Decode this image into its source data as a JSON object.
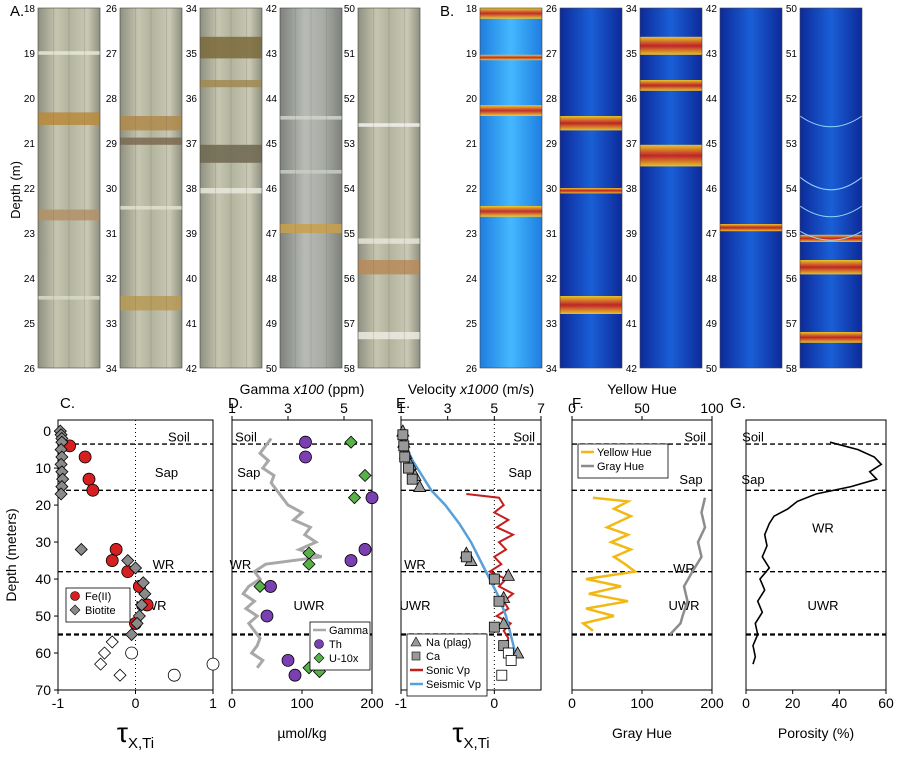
{
  "figure": {
    "panel_labels": {
      "A": "A.",
      "B": "B.",
      "C": "C.",
      "D": "D.",
      "E": "E.",
      "F": "F.",
      "G": "G."
    }
  },
  "core_panels": {
    "depth_axis_label": "Depth (m)",
    "columns": [
      {
        "id": "A1",
        "depth_ticks": [
          "18",
          "19",
          "20",
          "21",
          "22",
          "23",
          "24",
          "25",
          "26"
        ]
      },
      {
        "id": "A2",
        "depth_ticks": [
          "26",
          "27",
          "28",
          "29",
          "30",
          "31",
          "32",
          "33",
          "34"
        ]
      },
      {
        "id": "A3",
        "depth_ticks": [
          "34",
          "35",
          "36",
          "37",
          "38",
          "39",
          "40",
          "41",
          "42"
        ]
      },
      {
        "id": "A4",
        "depth_ticks": [
          "42",
          "43",
          "44",
          "45",
          "46",
          "47",
          "48",
          "49",
          "50"
        ]
      },
      {
        "id": "A5",
        "depth_ticks": [
          "50",
          "51",
          "52",
          "53",
          "54",
          "55",
          "56",
          "57",
          "58"
        ]
      },
      {
        "id": "B1",
        "depth_ticks": [
          "18",
          "19",
          "20",
          "21",
          "22",
          "23",
          "24",
          "25",
          "26"
        ]
      },
      {
        "id": "B2",
        "depth_ticks": [
          "26",
          "27",
          "28",
          "29",
          "30",
          "31",
          "32",
          "33",
          "34"
        ]
      },
      {
        "id": "B3",
        "depth_ticks": [
          "34",
          "35",
          "36",
          "37",
          "38",
          "39",
          "40",
          "41",
          "42"
        ]
      },
      {
        "id": "B4",
        "depth_ticks": [
          "42",
          "43",
          "44",
          "45",
          "46",
          "47",
          "48",
          "49",
          "50"
        ]
      },
      {
        "id": "B5",
        "depth_ticks": [
          "50",
          "51",
          "52",
          "53",
          "54",
          "55",
          "56",
          "57",
          "58"
        ]
      }
    ]
  },
  "colors": {
    "fe": "#d42020",
    "biotite": "#8a8a8a",
    "gamma": "#a8a8a8",
    "th": "#7a3fb0",
    "u": "#58b048",
    "sonic": "#c41e1e",
    "seismic": "#5aa0d8",
    "yellow": "#f2b915",
    "gray": "#8c8c8c",
    "porosity": "#000000"
  },
  "chart_data": [
    {
      "id": "C",
      "type": "scatter",
      "ylabel": "Depth (meters)",
      "xlabel_main": "τ",
      "xlabel_sub": "X,Ti",
      "xlim": [
        -1,
        1
      ],
      "ylim": [
        70,
        -3
      ],
      "xticks": [
        "-1",
        "0",
        "1"
      ],
      "yticks": [
        "0",
        "10",
        "20",
        "30",
        "40",
        "50",
        "60",
        "70"
      ],
      "zones": [
        {
          "name": "Soil",
          "depth": 3.5
        },
        {
          "name": "Sap",
          "depth": 16
        },
        {
          "name": "WR",
          "depth": 38
        },
        {
          "name": "UWR",
          "depth": 55
        }
      ],
      "zone_labels": [
        "Soil",
        "Sap",
        "WR",
        "UWR"
      ],
      "legend": [
        "Fe(II)",
        "Biotite"
      ],
      "series": [
        {
          "name": "Fe(II)",
          "marker": "circle",
          "points": [
            [
              -0.85,
              4
            ],
            [
              -0.65,
              7
            ],
            [
              -0.6,
              13
            ],
            [
              -0.55,
              16
            ],
            [
              -0.25,
              32
            ],
            [
              -0.3,
              35
            ],
            [
              -0.1,
              38
            ],
            [
              0.05,
              42
            ],
            [
              0.15,
              47
            ],
            [
              0.0,
              52
            ]
          ]
        },
        {
          "name": "Biotite",
          "marker": "diamond",
          "points": [
            [
              -0.97,
              0
            ],
            [
              -0.96,
              1
            ],
            [
              -0.95,
              2
            ],
            [
              -0.95,
              3
            ],
            [
              -0.96,
              5
            ],
            [
              -0.95,
              7
            ],
            [
              -0.96,
              9
            ],
            [
              -0.95,
              11
            ],
            [
              -0.94,
              13
            ],
            [
              -0.95,
              15
            ],
            [
              -0.96,
              17
            ],
            [
              -0.7,
              32
            ],
            [
              -0.1,
              35
            ],
            [
              0.0,
              37
            ],
            [
              0.1,
              41
            ],
            [
              0.12,
              44
            ],
            [
              0.08,
              47
            ],
            [
              0.05,
              50
            ],
            [
              0.02,
              52
            ],
            [
              -0.05,
              55
            ]
          ]
        },
        {
          "name": "lower",
          "marker": "open-diamond",
          "points": [
            [
              -0.3,
              57
            ],
            [
              -0.4,
              60
            ],
            [
              -0.45,
              63
            ],
            [
              -0.2,
              66
            ]
          ]
        },
        {
          "name": "lower-c",
          "marker": "open-circle",
          "points": [
            [
              -0.05,
              60
            ],
            [
              0.5,
              66
            ],
            [
              1.0,
              63
            ]
          ]
        }
      ]
    },
    {
      "id": "D",
      "type": "line+scatter",
      "title": "Gamma",
      "title_mult": "x100",
      "title_unit": "(ppm)",
      "xlabel": "µmol/kg",
      "xlim": [
        0,
        200
      ],
      "top_xlim": [
        1,
        6
      ],
      "ylim": [
        70,
        -3
      ],
      "xticks": [
        "0",
        "100",
        "200"
      ],
      "top_xticks": [
        "1",
        "3",
        "5"
      ],
      "zones": [
        {
          "name": "Soil",
          "depth": 3.5
        },
        {
          "name": "Sap",
          "depth": 16
        },
        {
          "name": "WR",
          "depth": 38
        },
        {
          "name": "UWR",
          "depth": 55
        }
      ],
      "zone_labels": [
        "Soil",
        "Sap",
        "WR",
        "UWR"
      ],
      "legend": [
        "Gamma",
        "Th",
        "U-10x"
      ],
      "gamma_profile": [
        [
          2.4,
          2
        ],
        [
          2.2,
          4
        ],
        [
          2.0,
          6
        ],
        [
          2.3,
          8
        ],
        [
          2.1,
          10
        ],
        [
          2.5,
          12
        ],
        [
          2.4,
          14
        ],
        [
          2.6,
          16
        ],
        [
          2.8,
          18
        ],
        [
          3.0,
          20
        ],
        [
          3.5,
          22
        ],
        [
          3.2,
          24
        ],
        [
          3.8,
          26
        ],
        [
          3.6,
          28
        ],
        [
          4.0,
          30
        ],
        [
          3.4,
          32
        ],
        [
          4.2,
          34
        ],
        [
          2.2,
          36
        ],
        [
          1.8,
          38
        ],
        [
          2.0,
          40
        ],
        [
          1.6,
          42
        ],
        [
          1.4,
          44
        ],
        [
          1.8,
          46
        ],
        [
          1.5,
          48
        ],
        [
          1.9,
          50
        ],
        [
          1.6,
          52
        ],
        [
          1.8,
          54
        ],
        [
          2.0,
          56
        ],
        [
          1.9,
          58
        ],
        [
          1.7,
          60
        ],
        [
          2.1,
          62
        ],
        [
          1.9,
          64
        ]
      ],
      "series": [
        {
          "name": "Th",
          "marker": "circle",
          "points": [
            [
              105,
              3
            ],
            [
              105,
              7
            ],
            [
              200,
              18
            ],
            [
              190,
              32
            ],
            [
              170,
              35
            ],
            [
              55,
              42
            ],
            [
              50,
              50
            ],
            [
              80,
              62
            ],
            [
              90,
              66
            ]
          ]
        },
        {
          "name": "U-10x",
          "marker": "diamond",
          "points": [
            [
              170,
              3
            ],
            [
              190,
              12
            ],
            [
              175,
              18
            ],
            [
              110,
              33
            ],
            [
              110,
              36
            ],
            [
              40,
              42
            ],
            [
              110,
              64
            ],
            [
              125,
              65
            ]
          ]
        }
      ]
    },
    {
      "id": "E",
      "type": "line+scatter",
      "title": "Velocity",
      "title_mult": "x1000",
      "title_unit": "(m/s)",
      "xlabel_main": "τ",
      "xlabel_sub": "X,Ti",
      "xlim": [
        -1,
        0.5
      ],
      "top_xlim": [
        1,
        7
      ],
      "ylim": [
        70,
        -3
      ],
      "xticks": [
        "-1",
        "0"
      ],
      "top_xticks": [
        "1",
        "3",
        "5",
        "7"
      ],
      "zones": [
        {
          "name": "Soil",
          "depth": 3.5
        },
        {
          "name": "Sap",
          "depth": 16
        },
        {
          "name": "WR",
          "depth": 38
        },
        {
          "name": "UWR",
          "depth": 55
        }
      ],
      "zone_labels": [
        "Soil",
        "Sap",
        "WR",
        "UWR"
      ],
      "legend": [
        "Na (plag)",
        "Ca",
        "Sonic Vp",
        "Seismic Vp"
      ],
      "sonic": [
        [
          3.8,
          17
        ],
        [
          5.2,
          18
        ],
        [
          5.4,
          20
        ],
        [
          5.0,
          22
        ],
        [
          5.6,
          24
        ],
        [
          5.1,
          26
        ],
        [
          5.8,
          28
        ],
        [
          5.2,
          30
        ],
        [
          5.5,
          32
        ],
        [
          5.0,
          34
        ],
        [
          5.3,
          36
        ],
        [
          4.8,
          38
        ],
        [
          5.5,
          40
        ],
        [
          5.2,
          42
        ],
        [
          5.8,
          44
        ],
        [
          5.4,
          46
        ],
        [
          5.6,
          48
        ],
        [
          5.1,
          50
        ],
        [
          5.7,
          52
        ],
        [
          5.4,
          54
        ],
        [
          5.6,
          56
        ],
        [
          5.5,
          58
        ]
      ],
      "seismic": [
        [
          1,
          0
        ],
        [
          1.2,
          4
        ],
        [
          1.5,
          8
        ],
        [
          1.9,
          12
        ],
        [
          2.3,
          16
        ],
        [
          2.9,
          20
        ],
        [
          3.5,
          25
        ],
        [
          4.0,
          30
        ],
        [
          4.4,
          35
        ],
        [
          4.8,
          40
        ],
        [
          5.2,
          45
        ],
        [
          5.5,
          50
        ],
        [
          5.7,
          55
        ],
        [
          5.9,
          60
        ]
      ],
      "series": [
        {
          "name": "Na (plag)",
          "marker": "triangle",
          "points": [
            [
              -0.98,
              0
            ],
            [
              -0.97,
              3
            ],
            [
              -0.95,
              6
            ],
            [
              -0.9,
              9
            ],
            [
              -0.85,
              12
            ],
            [
              -0.8,
              15
            ],
            [
              -0.3,
              33
            ],
            [
              -0.25,
              35
            ],
            [
              0.15,
              39
            ],
            [
              0.1,
              45
            ],
            [
              0.1,
              52
            ],
            [
              0.25,
              60
            ]
          ]
        },
        {
          "name": "Ca",
          "marker": "square",
          "points": [
            [
              -0.98,
              1
            ],
            [
              -0.97,
              4
            ],
            [
              -0.96,
              7
            ],
            [
              -0.92,
              10
            ],
            [
              -0.88,
              13
            ],
            [
              -0.3,
              34
            ],
            [
              0.0,
              40
            ],
            [
              0.05,
              46
            ],
            [
              0.0,
              53
            ],
            [
              0.1,
              58
            ]
          ]
        },
        {
          "name": "lower",
          "marker": "open-square",
          "points": [
            [
              0.15,
              60
            ],
            [
              0.18,
              62
            ],
            [
              0.08,
              66
            ]
          ]
        }
      ]
    },
    {
      "id": "F",
      "type": "line",
      "title": "Yellow Hue",
      "xlabel": "Gray Hue",
      "xlim": [
        0,
        200
      ],
      "top_xlim": [
        0,
        100
      ],
      "ylim": [
        70,
        -3
      ],
      "xticks": [
        "0",
        "100",
        "200"
      ],
      "top_xticks": [
        "0",
        "50",
        "100"
      ],
      "zones": [
        {
          "name": "Soil",
          "depth": 3.5
        },
        {
          "name": "Sap",
          "depth": 16
        },
        {
          "name": "WR",
          "depth": 38
        },
        {
          "name": "UWR",
          "depth": 55
        }
      ],
      "zone_labels": [
        "Soil",
        "Sap",
        "WR",
        "UWR"
      ],
      "legend": [
        "Yellow Hue",
        "Gray Hue"
      ],
      "yellow": [
        [
          15,
          18
        ],
        [
          40,
          19
        ],
        [
          30,
          21
        ],
        [
          42,
          23
        ],
        [
          25,
          26
        ],
        [
          40,
          28
        ],
        [
          28,
          30
        ],
        [
          42,
          32
        ],
        [
          30,
          34
        ],
        [
          38,
          36
        ],
        [
          45,
          38
        ],
        [
          10,
          40
        ],
        [
          35,
          42
        ],
        [
          12,
          44
        ],
        [
          40,
          46
        ],
        [
          10,
          48
        ],
        [
          30,
          50
        ],
        [
          8,
          52
        ],
        [
          15,
          54
        ]
      ],
      "gray": [
        [
          190,
          18
        ],
        [
          185,
          22
        ],
        [
          190,
          26
        ],
        [
          180,
          30
        ],
        [
          185,
          34
        ],
        [
          172,
          38
        ],
        [
          160,
          42
        ],
        [
          165,
          46
        ],
        [
          158,
          50
        ],
        [
          155,
          52
        ],
        [
          140,
          55
        ]
      ],
      "series": []
    },
    {
      "id": "G",
      "type": "line",
      "xlabel": "Porosity (%)",
      "xlim": [
        0,
        60
      ],
      "ylim": [
        70,
        -3
      ],
      "xticks": [
        "0",
        "20",
        "40",
        "60"
      ],
      "zones": [
        {
          "name": "Soil",
          "depth": 3.5
        },
        {
          "name": "Sap",
          "depth": 16
        },
        {
          "name": "WR",
          "depth": 38
        },
        {
          "name": "UWR",
          "depth": 55
        }
      ],
      "zone_labels": [
        "Soil",
        "Sap",
        "WR",
        "UWR"
      ],
      "porosity": [
        [
          36,
          3
        ],
        [
          48,
          5
        ],
        [
          55,
          7
        ],
        [
          58,
          9
        ],
        [
          53,
          11
        ],
        [
          56,
          13
        ],
        [
          45,
          15
        ],
        [
          30,
          17
        ],
        [
          22,
          19
        ],
        [
          18,
          21
        ],
        [
          12,
          23
        ],
        [
          10,
          25
        ],
        [
          8,
          28
        ],
        [
          9,
          31
        ],
        [
          7,
          34
        ],
        [
          10,
          37
        ],
        [
          6,
          40
        ],
        [
          8,
          43
        ],
        [
          5,
          46
        ],
        [
          7,
          49
        ],
        [
          4,
          52
        ],
        [
          5,
          55
        ],
        [
          3,
          58
        ],
        [
          4,
          61
        ],
        [
          3,
          63
        ]
      ],
      "series": []
    }
  ]
}
